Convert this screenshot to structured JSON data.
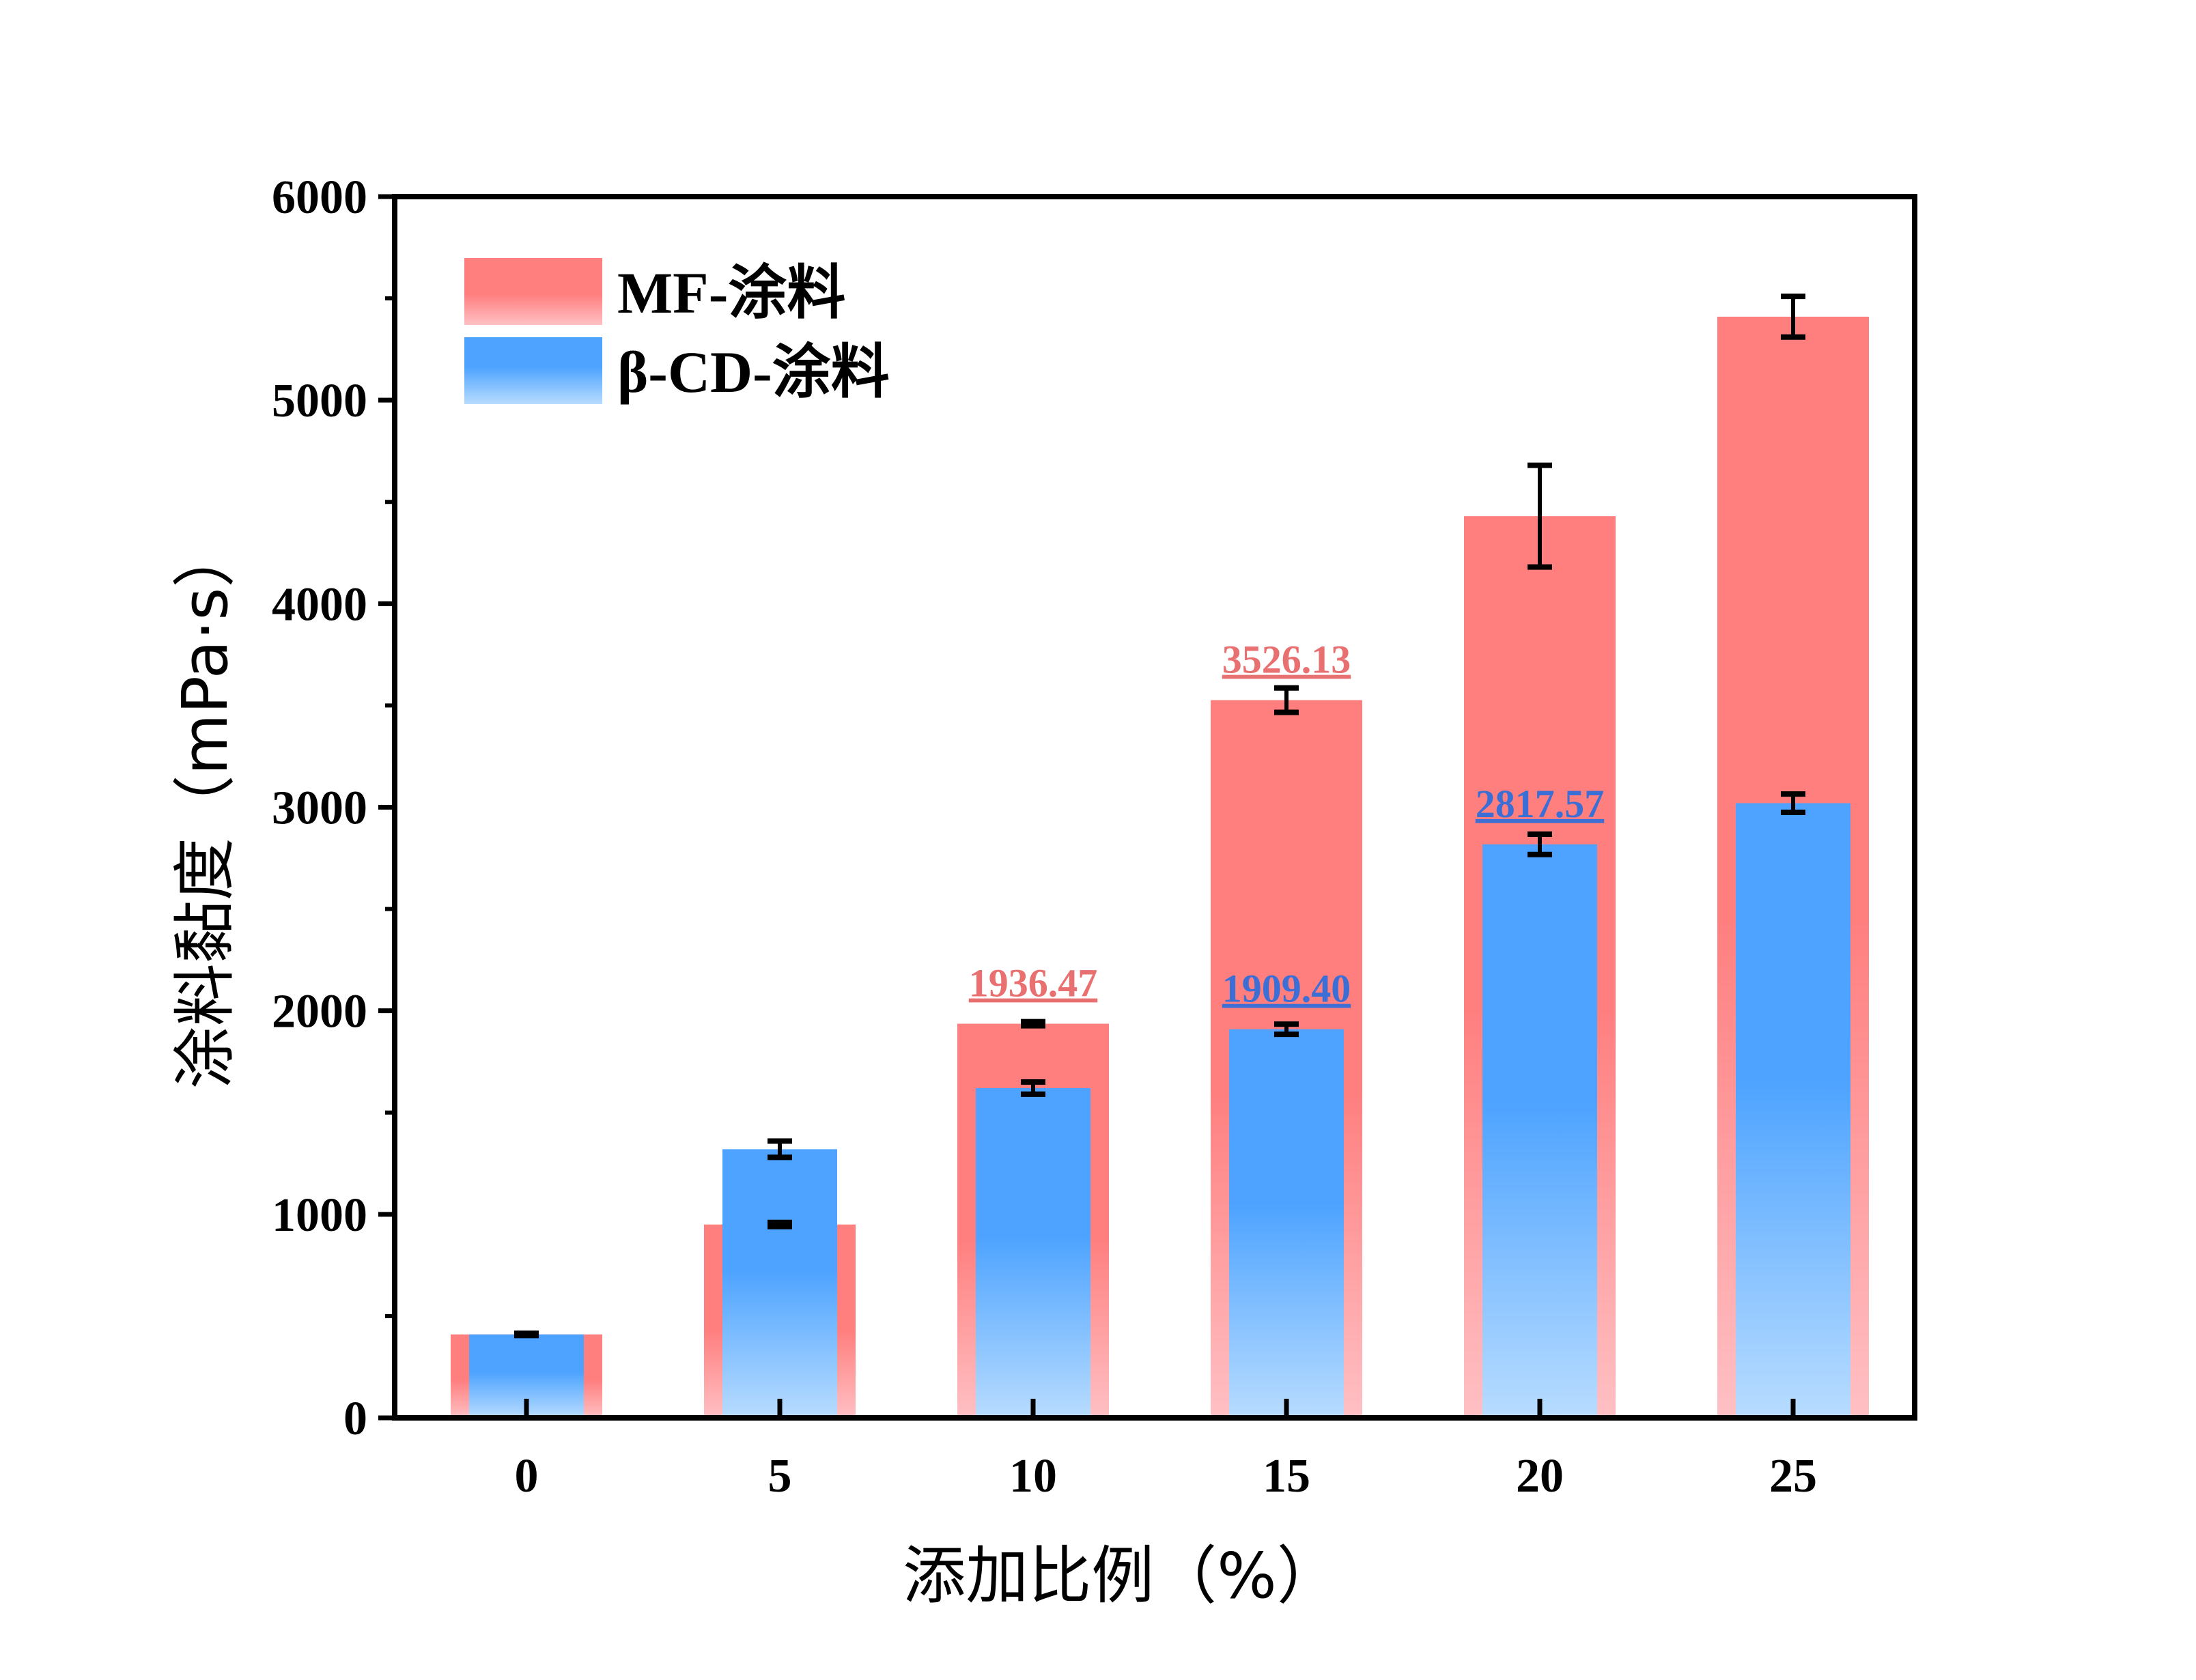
{
  "chart_data": {
    "type": "bar",
    "xlabel": "添加比例（%）",
    "ylabel": "涂料黏度（mPa·s）",
    "ylim": [
      0,
      6000
    ],
    "yticks": [
      0,
      1000,
      2000,
      3000,
      4000,
      5000,
      6000
    ],
    "categories": [
      "0",
      "5",
      "10",
      "15",
      "20",
      "25"
    ],
    "legend_position": "top-left",
    "series": [
      {
        "name": "MF-涂料",
        "color_top": "#ff7f7f",
        "color_bottom": "#ffc0c4",
        "values": [
          410,
          950,
          1936.47,
          3526.13,
          4430,
          5410
        ],
        "errors": [
          5,
          10,
          10,
          60,
          250,
          100
        ],
        "data_labels": [
          "",
          "",
          "1936.47",
          "3526.13",
          "",
          ""
        ],
        "label_color": "#e87070"
      },
      {
        "name": "β-CD-涂料",
        "color_top": "#4da3ff",
        "color_bottom": "#b8dcff",
        "values": [
          410,
          1320,
          1620,
          1909.4,
          2817.57,
          3020
        ],
        "errors": [
          5,
          40,
          30,
          25,
          50,
          45
        ],
        "data_labels": [
          "",
          "",
          "",
          "1909.40",
          "2817.57",
          ""
        ],
        "label_color": "#3b6fd6"
      }
    ]
  }
}
